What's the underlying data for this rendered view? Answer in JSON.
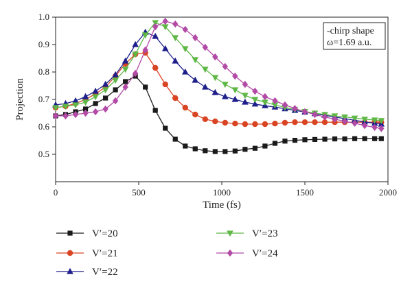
{
  "chart_data": {
    "type": "line",
    "xlabel": "Time (fs)",
    "ylabel": "Projection",
    "xlim": [
      0,
      2000
    ],
    "ylim": [
      0.4,
      1.0
    ],
    "xticks": [
      0,
      500,
      1000,
      1500,
      2000
    ],
    "yticks": [
      0.5,
      0.6,
      0.7,
      0.8,
      0.9,
      1.0
    ],
    "grid": false,
    "annotation": {
      "line1": "-chirp shape",
      "line2": "ω=1.69 a.u."
    },
    "legend_position": "bottom",
    "series": [
      {
        "name": "V′=20",
        "color": "#1a1a1a",
        "marker": "square",
        "x": [
          0,
          60,
          120,
          180,
          240,
          300,
          360,
          420,
          480,
          540,
          600,
          660,
          720,
          780,
          840,
          900,
          960,
          1020,
          1080,
          1140,
          1200,
          1260,
          1320,
          1380,
          1440,
          1500,
          1560,
          1620,
          1680,
          1740,
          1800,
          1860,
          1920,
          1960
        ],
        "y": [
          0.64,
          0.645,
          0.655,
          0.665,
          0.685,
          0.705,
          0.735,
          0.765,
          0.785,
          0.745,
          0.66,
          0.595,
          0.555,
          0.53,
          0.52,
          0.513,
          0.51,
          0.51,
          0.512,
          0.518,
          0.522,
          0.53,
          0.54,
          0.548,
          0.551,
          0.553,
          0.554,
          0.555,
          0.556,
          0.556,
          0.557,
          0.557,
          0.557,
          0.557
        ]
      },
      {
        "name": "V′=21",
        "color": "#d94423",
        "marker": "circle",
        "x": [
          0,
          60,
          120,
          180,
          240,
          300,
          360,
          420,
          480,
          540,
          600,
          660,
          720,
          780,
          840,
          900,
          960,
          1020,
          1080,
          1140,
          1200,
          1260,
          1320,
          1380,
          1440,
          1500,
          1560,
          1620,
          1680,
          1740,
          1800,
          1860,
          1920,
          1960
        ],
        "y": [
          0.67,
          0.675,
          0.685,
          0.7,
          0.72,
          0.745,
          0.785,
          0.83,
          0.865,
          0.87,
          0.815,
          0.755,
          0.705,
          0.67,
          0.645,
          0.628,
          0.62,
          0.615,
          0.612,
          0.61,
          0.61,
          0.61,
          0.612,
          0.615,
          0.617,
          0.617,
          0.617,
          0.617,
          0.617,
          0.617,
          0.617,
          0.617,
          0.617,
          0.617
        ]
      },
      {
        "name": "V′=22",
        "color": "#1e1f8a",
        "marker": "triangle-up",
        "x": [
          0,
          60,
          120,
          180,
          240,
          300,
          360,
          420,
          480,
          540,
          600,
          660,
          720,
          780,
          840,
          900,
          960,
          1020,
          1080,
          1140,
          1200,
          1260,
          1320,
          1380,
          1440,
          1500,
          1560,
          1620,
          1680,
          1740,
          1800,
          1860,
          1920,
          1960
        ],
        "y": [
          0.68,
          0.685,
          0.695,
          0.71,
          0.73,
          0.755,
          0.79,
          0.84,
          0.9,
          0.945,
          0.93,
          0.885,
          0.84,
          0.8,
          0.77,
          0.745,
          0.725,
          0.71,
          0.7,
          0.69,
          0.683,
          0.677,
          0.672,
          0.666,
          0.66,
          0.654,
          0.648,
          0.642,
          0.636,
          0.63,
          0.624,
          0.618,
          0.613,
          0.61
        ]
      },
      {
        "name": "V′=23",
        "color": "#5fb846",
        "marker": "triangle-down",
        "x": [
          0,
          60,
          120,
          180,
          240,
          300,
          360,
          420,
          480,
          540,
          600,
          660,
          720,
          780,
          840,
          900,
          960,
          1020,
          1080,
          1140,
          1200,
          1260,
          1320,
          1380,
          1440,
          1500,
          1560,
          1620,
          1680,
          1740,
          1800,
          1860,
          1920,
          1960
        ],
        "y": [
          0.67,
          0.675,
          0.68,
          0.69,
          0.71,
          0.735,
          0.77,
          0.81,
          0.865,
          0.935,
          0.98,
          0.965,
          0.925,
          0.885,
          0.845,
          0.81,
          0.78,
          0.755,
          0.735,
          0.715,
          0.7,
          0.69,
          0.68,
          0.671,
          0.663,
          0.656,
          0.65,
          0.645,
          0.64,
          0.636,
          0.632,
          0.628,
          0.625,
          0.623
        ]
      },
      {
        "name": "V′=24",
        "color": "#b24aa6",
        "marker": "diamond",
        "x": [
          0,
          60,
          120,
          180,
          240,
          300,
          360,
          420,
          480,
          540,
          600,
          660,
          720,
          780,
          840,
          900,
          960,
          1020,
          1080,
          1140,
          1200,
          1260,
          1320,
          1380,
          1440,
          1500,
          1560,
          1620,
          1680,
          1740,
          1800,
          1860,
          1920,
          1960
        ],
        "y": [
          0.64,
          0.64,
          0.645,
          0.65,
          0.655,
          0.665,
          0.695,
          0.745,
          0.795,
          0.88,
          0.965,
          0.985,
          0.975,
          0.955,
          0.925,
          0.89,
          0.855,
          0.82,
          0.785,
          0.755,
          0.73,
          0.71,
          0.695,
          0.68,
          0.667,
          0.655,
          0.645,
          0.636,
          0.628,
          0.62,
          0.613,
          0.605,
          0.598,
          0.594
        ]
      }
    ]
  }
}
